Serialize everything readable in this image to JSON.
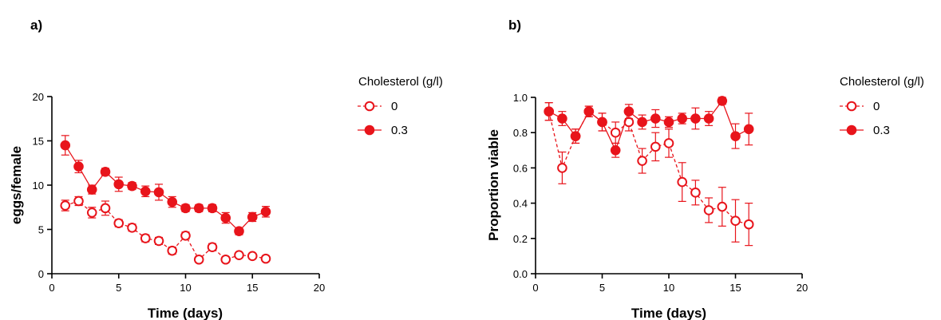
{
  "colors": {
    "series": "#e8141b",
    "axis": "#000000"
  },
  "chart_data": [
    {
      "type": "line",
      "panel": "a)",
      "xlabel": "Time (days)",
      "ylabel": "eggs/female",
      "xlim": [
        0,
        20
      ],
      "ylim": [
        0,
        20
      ],
      "xticks": [
        0,
        5,
        10,
        15,
        20
      ],
      "yticks": [
        0,
        5,
        10,
        15,
        20
      ],
      "ytick_labels": [
        "0",
        "5",
        "10",
        "15",
        "20"
      ],
      "grid": false,
      "legend": {
        "title": "Cholesterol (g/l)",
        "position": "right"
      },
      "series": [
        {
          "name": "0",
          "marker": "open-circle",
          "line": "dashed",
          "x": [
            1,
            2,
            3,
            4,
            5,
            6,
            7,
            8,
            9,
            10,
            11,
            12,
            13,
            14,
            15,
            16
          ],
          "y": [
            7.7,
            8.2,
            6.9,
            7.4,
            5.7,
            5.2,
            4.0,
            3.7,
            2.6,
            4.3,
            1.6,
            3.0,
            1.6,
            2.1,
            2.0,
            1.7
          ],
          "err": [
            0.6,
            0.5,
            0.6,
            0.8,
            0.4,
            0.4,
            0.4,
            0.4,
            0.4,
            0.4,
            0.3,
            0.4,
            0.3,
            0.3,
            0.3,
            0.3
          ]
        },
        {
          "name": "0.3",
          "marker": "filled-circle",
          "line": "solid",
          "x": [
            1,
            2,
            3,
            4,
            5,
            6,
            7,
            8,
            9,
            10,
            11,
            12,
            13,
            14,
            15,
            16
          ],
          "y": [
            14.5,
            12.1,
            9.5,
            11.5,
            10.1,
            9.9,
            9.3,
            9.2,
            8.1,
            7.4,
            7.4,
            7.4,
            6.3,
            4.8,
            6.4,
            7.0
          ],
          "err": [
            1.1,
            0.7,
            0.5,
            0.4,
            0.8,
            0.4,
            0.6,
            0.9,
            0.6,
            0.4,
            0.4,
            0.4,
            0.6,
            0.4,
            0.5,
            0.6
          ]
        }
      ]
    },
    {
      "type": "line",
      "panel": "b)",
      "xlabel": "Time (days)",
      "ylabel": "Proportion viable",
      "xlim": [
        0,
        20
      ],
      "ylim": [
        0,
        1
      ],
      "xticks": [
        0,
        5,
        10,
        15,
        20
      ],
      "yticks": [
        0,
        0.2,
        0.4,
        0.6,
        0.8,
        1.0
      ],
      "ytick_labels": [
        "0.0",
        "0.2",
        "0.4",
        "0.6",
        "0.8",
        "1.0"
      ],
      "grid": false,
      "legend": {
        "title": "Cholesterol (g/l)",
        "position": "right"
      },
      "series": [
        {
          "name": "0",
          "marker": "open-circle",
          "line": "dashed",
          "x": [
            1,
            2,
            3,
            4,
            5,
            6,
            7,
            8,
            9,
            10,
            11,
            12,
            13,
            14,
            15,
            16
          ],
          "y": [
            0.92,
            0.6,
            0.78,
            0.92,
            0.86,
            0.8,
            0.86,
            0.64,
            0.72,
            0.74,
            0.52,
            0.46,
            0.36,
            0.38,
            0.3,
            0.28
          ],
          "err": [
            0.05,
            0.09,
            0.04,
            0.03,
            0.05,
            0.06,
            0.05,
            0.07,
            0.08,
            0.08,
            0.11,
            0.07,
            0.07,
            0.11,
            0.12,
            0.12
          ]
        },
        {
          "name": "0.3",
          "marker": "filled-circle",
          "line": "solid",
          "x": [
            1,
            2,
            3,
            4,
            5,
            6,
            7,
            8,
            9,
            10,
            11,
            12,
            13,
            14,
            15,
            16
          ],
          "y": [
            0.92,
            0.88,
            0.78,
            0.92,
            0.86,
            0.7,
            0.92,
            0.86,
            0.88,
            0.86,
            0.88,
            0.88,
            0.88,
            0.98,
            0.78,
            0.82
          ],
          "err": [
            0.05,
            0.04,
            0.04,
            0.03,
            0.05,
            0.04,
            0.04,
            0.04,
            0.05,
            0.03,
            0.03,
            0.06,
            0.04,
            0.02,
            0.07,
            0.09
          ]
        }
      ]
    }
  ]
}
